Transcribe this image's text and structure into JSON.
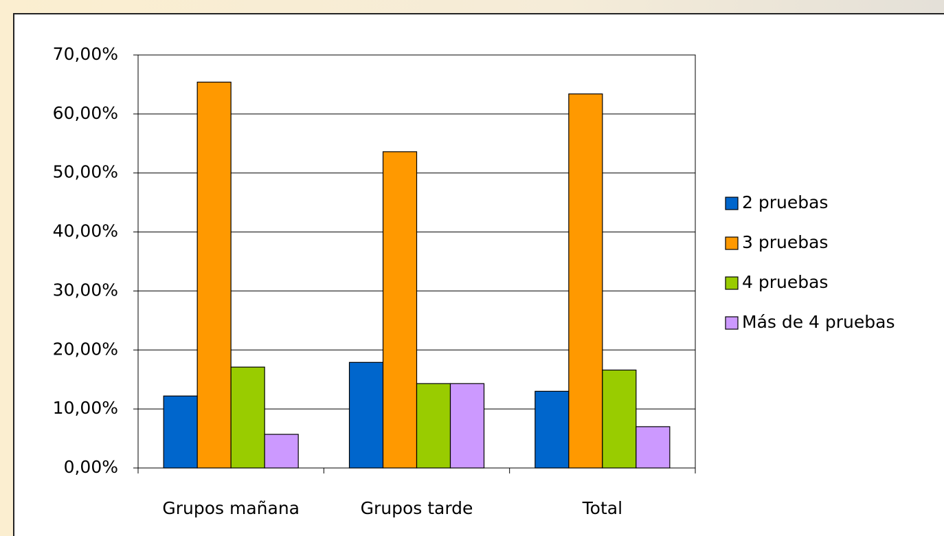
{
  "chart_data": {
    "type": "bar",
    "categories": [
      "Grupos mañana",
      "Grupos tarde",
      "Total"
    ],
    "series": [
      {
        "name": "2 pruebas",
        "color": "#0066cc",
        "values": [
          12.2,
          17.9,
          13.0
        ]
      },
      {
        "name": "3 pruebas",
        "color": "#ff9900",
        "values": [
          65.4,
          53.6,
          63.4
        ]
      },
      {
        "name": "4 pruebas",
        "color": "#99cc00",
        "values": [
          17.1,
          14.3,
          16.6
        ]
      },
      {
        "name": "Más de 4 pruebas",
        "color": "#cc99ff",
        "values": [
          5.7,
          14.3,
          7.0
        ]
      }
    ],
    "ylim": [
      0,
      70
    ],
    "yticks": [
      {
        "value": 0,
        "label": "0,00%"
      },
      {
        "value": 10,
        "label": "10,00%"
      },
      {
        "value": 20,
        "label": "20,00%"
      },
      {
        "value": 30,
        "label": "30,00%"
      },
      {
        "value": 40,
        "label": "40,00%"
      },
      {
        "value": 50,
        "label": "50,00%"
      },
      {
        "value": 60,
        "label": "60,00%"
      },
      {
        "value": 70,
        "label": "70,00%"
      }
    ],
    "grid": true,
    "legend": "right"
  }
}
